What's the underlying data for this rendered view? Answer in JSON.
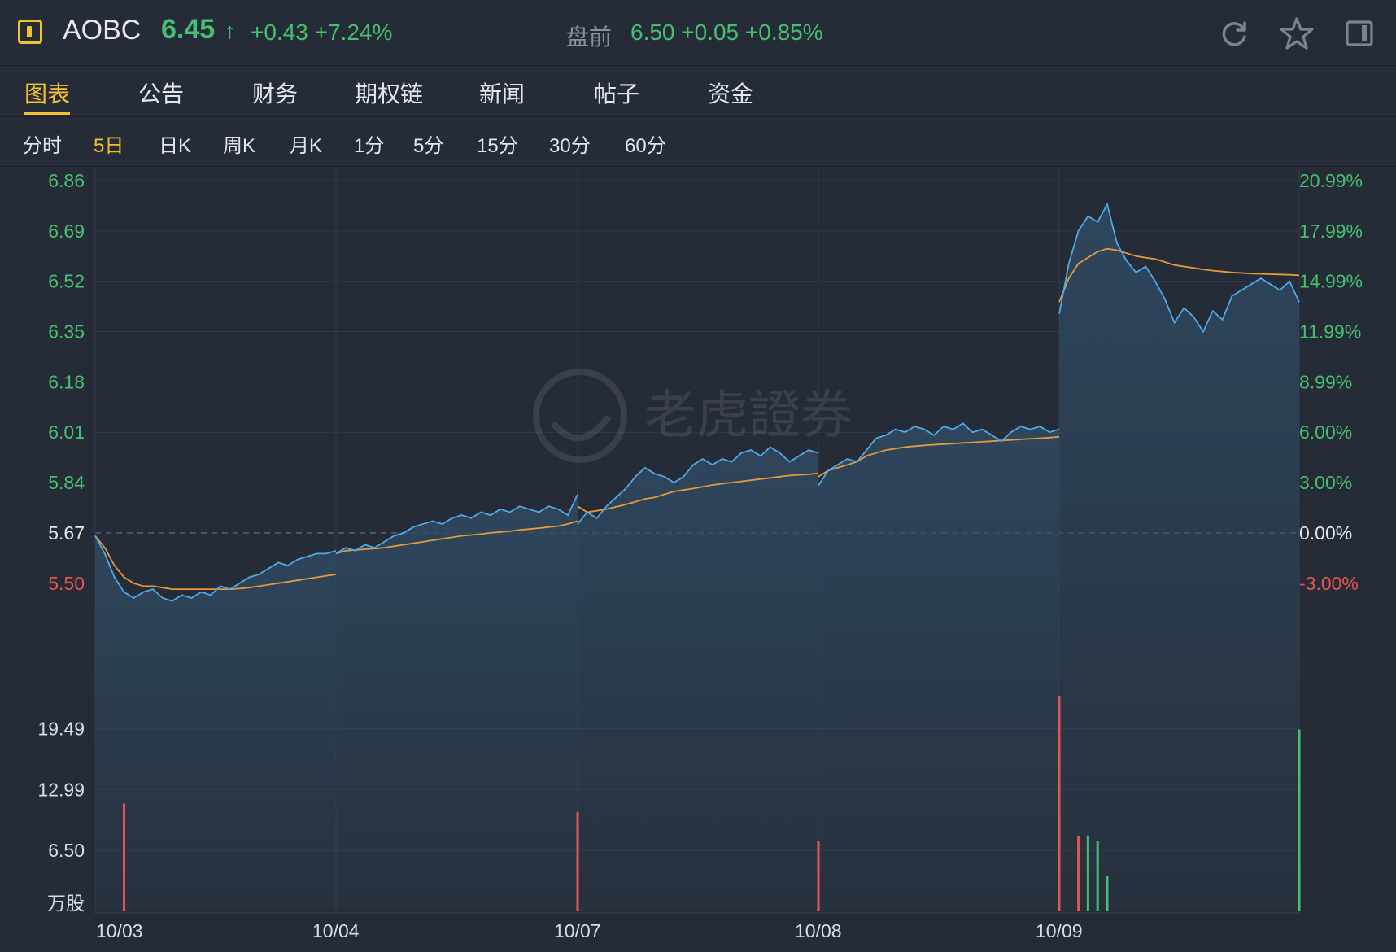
{
  "header": {
    "symbol": "AOBC",
    "price": "6.45",
    "change": "+0.43 +7.24%",
    "premarket_label": "盘前",
    "premarket_value": "6.50 +0.05 +0.85%"
  },
  "icons": {
    "logo": "logo-box-icon",
    "refresh": "refresh-icon",
    "star": "star-icon",
    "panel": "panel-toggle-icon"
  },
  "tabs": [
    {
      "label": "图表",
      "active": true
    },
    {
      "label": "公告"
    },
    {
      "label": "财务"
    },
    {
      "label": "期权链"
    },
    {
      "label": "新闻"
    },
    {
      "label": "帖子"
    },
    {
      "label": "资金"
    }
  ],
  "periods": [
    {
      "label": "分时"
    },
    {
      "label": "5日",
      "active": true
    },
    {
      "label": "日K"
    },
    {
      "label": "周K"
    },
    {
      "label": "月K"
    },
    {
      "label": "1分"
    },
    {
      "label": "5分"
    },
    {
      "label": "15分"
    },
    {
      "label": "30分"
    },
    {
      "label": "60分"
    }
  ],
  "colors": {
    "up": "#45c070",
    "down": "#e5544f",
    "price_line": "#4fa8e8",
    "avg_line": "#e49a3b",
    "accent": "#f2c233",
    "background": "#262c37"
  },
  "watermark": "老虎證券",
  "chart_data": {
    "type": "line",
    "previous_close": 5.67,
    "price_axis": {
      "left_ticks": [
        "6.86",
        "6.69",
        "6.52",
        "6.35",
        "6.18",
        "6.01",
        "5.84",
        "5.67",
        "5.50"
      ],
      "right_ticks": [
        "20.99%",
        "17.99%",
        "14.99%",
        "11.99%",
        "8.99%",
        "6.00%",
        "3.00%",
        "0.00%",
        "-3.00%"
      ],
      "ylim": [
        5.34,
        6.86
      ]
    },
    "volume_axis": {
      "ticks": [
        "19.49",
        "12.99",
        "6.50"
      ],
      "unit": "万股",
      "ylim": [
        0,
        23
      ]
    },
    "x_labels": [
      "10/03",
      "10/04",
      "10/07",
      "10/08",
      "10/09"
    ],
    "days": [
      {
        "label": "10/03",
        "price": [
          5.66,
          5.6,
          5.52,
          5.47,
          5.45,
          5.47,
          5.48,
          5.45,
          5.44,
          5.46,
          5.45,
          5.47,
          5.46,
          5.49,
          5.48,
          5.5,
          5.52,
          5.53,
          5.55,
          5.57,
          5.56,
          5.58,
          5.59,
          5.6,
          5.6,
          5.61
        ],
        "avg": [
          5.66,
          5.62,
          5.56,
          5.52,
          5.5,
          5.49,
          5.49,
          5.485,
          5.48,
          5.48,
          5.48,
          5.48,
          5.48,
          5.48,
          5.48,
          5.482,
          5.485,
          5.49,
          5.495,
          5.5,
          5.505,
          5.51,
          5.515,
          5.52,
          5.525,
          5.53
        ]
      },
      {
        "label": "10/04",
        "price": [
          5.6,
          5.62,
          5.61,
          5.63,
          5.62,
          5.64,
          5.66,
          5.67,
          5.69,
          5.7,
          5.71,
          5.7,
          5.72,
          5.73,
          5.72,
          5.74,
          5.73,
          5.75,
          5.74,
          5.76,
          5.75,
          5.74,
          5.76,
          5.75,
          5.73,
          5.8
        ],
        "avg": [
          5.6,
          5.61,
          5.612,
          5.615,
          5.617,
          5.62,
          5.625,
          5.63,
          5.635,
          5.64,
          5.645,
          5.65,
          5.655,
          5.66,
          5.663,
          5.666,
          5.67,
          5.673,
          5.676,
          5.68,
          5.683,
          5.686,
          5.69,
          5.693,
          5.7,
          5.71
        ]
      },
      {
        "label": "10/07",
        "price": [
          5.7,
          5.74,
          5.72,
          5.76,
          5.79,
          5.82,
          5.86,
          5.89,
          5.87,
          5.86,
          5.84,
          5.86,
          5.9,
          5.92,
          5.9,
          5.92,
          5.91,
          5.94,
          5.95,
          5.93,
          5.96,
          5.94,
          5.91,
          5.93,
          5.95,
          5.94
        ],
        "avg": [
          5.76,
          5.74,
          5.745,
          5.75,
          5.758,
          5.766,
          5.775,
          5.785,
          5.79,
          5.8,
          5.81,
          5.815,
          5.82,
          5.826,
          5.832,
          5.836,
          5.84,
          5.844,
          5.848,
          5.852,
          5.856,
          5.86,
          5.864,
          5.866,
          5.868,
          5.872
        ]
      },
      {
        "label": "10/08",
        "price": [
          5.83,
          5.88,
          5.9,
          5.92,
          5.91,
          5.95,
          5.99,
          6.0,
          6.02,
          6.01,
          6.03,
          6.02,
          6.0,
          6.03,
          6.02,
          6.04,
          6.01,
          6.02,
          6.0,
          5.98,
          6.01,
          6.03,
          6.02,
          6.03,
          6.01,
          6.02
        ],
        "avg": [
          5.86,
          5.88,
          5.89,
          5.9,
          5.91,
          5.93,
          5.94,
          5.95,
          5.955,
          5.96,
          5.963,
          5.966,
          5.968,
          5.97,
          5.972,
          5.974,
          5.976,
          5.978,
          5.98,
          5.982,
          5.984,
          5.986,
          5.988,
          5.99,
          5.992,
          5.995
        ]
      },
      {
        "label": "10/09",
        "price": [
          6.41,
          6.58,
          6.69,
          6.74,
          6.72,
          6.78,
          6.65,
          6.59,
          6.55,
          6.57,
          6.52,
          6.46,
          6.38,
          6.43,
          6.4,
          6.35,
          6.42,
          6.39,
          6.47,
          6.49,
          6.51,
          6.53,
          6.51,
          6.49,
          6.52,
          6.45
        ],
        "avg": [
          6.45,
          6.53,
          6.58,
          6.6,
          6.62,
          6.63,
          6.625,
          6.615,
          6.605,
          6.6,
          6.595,
          6.585,
          6.575,
          6.57,
          6.565,
          6.56,
          6.556,
          6.553,
          6.55,
          6.548,
          6.546,
          6.545,
          6.544,
          6.543,
          6.542,
          6.54
        ]
      }
    ],
    "volume": {
      "note": "volume in 万股 per bar; spikes at session opens",
      "bars": [
        {
          "day": 0,
          "index": 3,
          "value": 11.5,
          "color": "down"
        },
        {
          "day": 1,
          "index": 25,
          "value": 6.0,
          "color": "down"
        },
        {
          "day": 2,
          "index": 0,
          "value": 10.6,
          "color": "down"
        },
        {
          "day": 3,
          "index": 0,
          "value": 7.5,
          "color": "down"
        },
        {
          "day": 4,
          "index": 0,
          "value": 23.0,
          "color": "down"
        },
        {
          "day": 4,
          "index": 2,
          "value": 8.0,
          "color": "down"
        },
        {
          "day": 4,
          "index": 3,
          "value": 8.1,
          "color": "up"
        },
        {
          "day": 4,
          "index": 4,
          "value": 7.5,
          "color": "up"
        },
        {
          "day": 4,
          "index": 5,
          "value": 3.8,
          "color": "up"
        },
        {
          "day": 4,
          "index": 25,
          "value": 19.4,
          "color": "up"
        }
      ]
    }
  }
}
